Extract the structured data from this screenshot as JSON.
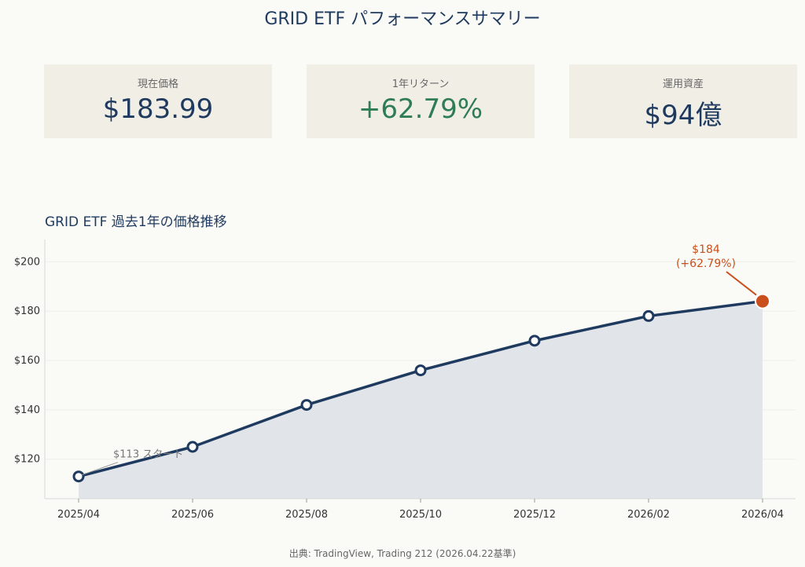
{
  "title": "GRID ETF パフォーマンスサマリー",
  "cards": [
    {
      "label": "現在価格",
      "value": "$183.99",
      "tone": "neutral"
    },
    {
      "label": "1年リターン",
      "value": "+62.79%",
      "tone": "positive"
    },
    {
      "label": "運用資産",
      "value": "$94億",
      "tone": "neutral"
    }
  ],
  "chart_title": "GRID ETF 過去1年の価格推移",
  "source": "出典: TradingView, Trading 212 (2026.04.22基準)",
  "colors": {
    "line": "#1f3a5f",
    "fill": "#dfe3e8",
    "accent": "#c9501c",
    "positive": "#2f7d55"
  },
  "chart_data": {
    "type": "line",
    "x": [
      "2025/04",
      "2025/06",
      "2025/08",
      "2025/10",
      "2025/12",
      "2026/02",
      "2026/04"
    ],
    "values": [
      113,
      125,
      142,
      156,
      168,
      178,
      184
    ],
    "yticks": [
      "$120",
      "$140",
      "$160",
      "$180",
      "$200"
    ],
    "ytick_values": [
      120,
      140,
      160,
      180,
      200
    ],
    "ylim": [
      104,
      209
    ],
    "area_fill": true,
    "annotations": {
      "start": "$113 スタート",
      "end_price": "$184",
      "end_return": "(+62.79%)"
    }
  }
}
